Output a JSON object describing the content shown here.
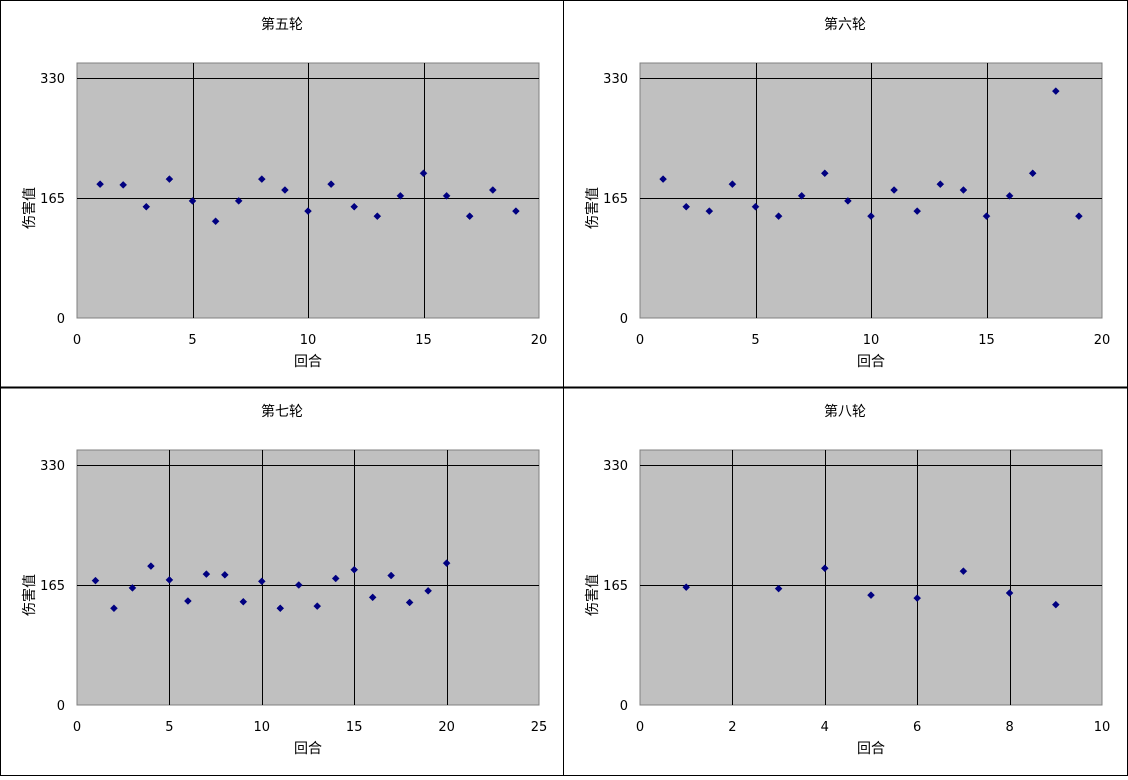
{
  "chart_data": [
    {
      "type": "scatter",
      "title": "第五轮",
      "xlabel": "回合",
      "ylabel": "伤害值",
      "xlim": [
        0,
        20
      ],
      "ylim": [
        0,
        330
      ],
      "xticks": [
        0,
        5,
        10,
        15,
        20
      ],
      "yticks": [
        0,
        165,
        330
      ],
      "grid": true,
      "marker_color": "#000080",
      "points": [
        {
          "x": 1,
          "y": 184
        },
        {
          "x": 2,
          "y": 183
        },
        {
          "x": 3,
          "y": 153
        },
        {
          "x": 4,
          "y": 191
        },
        {
          "x": 5,
          "y": 161
        },
        {
          "x": 6,
          "y": 133
        },
        {
          "x": 7,
          "y": 161
        },
        {
          "x": 8,
          "y": 191
        },
        {
          "x": 9,
          "y": 176
        },
        {
          "x": 10,
          "y": 147
        },
        {
          "x": 11,
          "y": 184
        },
        {
          "x": 12,
          "y": 153
        },
        {
          "x": 13,
          "y": 140
        },
        {
          "x": 14,
          "y": 168
        },
        {
          "x": 15,
          "y": 199
        },
        {
          "x": 16,
          "y": 168
        },
        {
          "x": 17,
          "y": 140
        },
        {
          "x": 18,
          "y": 176
        },
        {
          "x": 19,
          "y": 147
        }
      ]
    },
    {
      "type": "scatter",
      "title": "第六轮",
      "xlabel": "回合",
      "ylabel": "伤害值",
      "xlim": [
        0,
        20
      ],
      "ylim": [
        0,
        330
      ],
      "xticks": [
        0,
        5,
        10,
        15,
        20
      ],
      "yticks": [
        0,
        165,
        330
      ],
      "grid": true,
      "marker_color": "#000080",
      "points": [
        {
          "x": 1,
          "y": 191
        },
        {
          "x": 2,
          "y": 153
        },
        {
          "x": 3,
          "y": 147
        },
        {
          "x": 4,
          "y": 184
        },
        {
          "x": 5,
          "y": 153
        },
        {
          "x": 6,
          "y": 140
        },
        {
          "x": 7,
          "y": 168
        },
        {
          "x": 8,
          "y": 199
        },
        {
          "x": 9,
          "y": 161
        },
        {
          "x": 10,
          "y": 140
        },
        {
          "x": 11,
          "y": 176
        },
        {
          "x": 12,
          "y": 147
        },
        {
          "x": 13,
          "y": 184
        },
        {
          "x": 14,
          "y": 176
        },
        {
          "x": 15,
          "y": 140
        },
        {
          "x": 16,
          "y": 168
        },
        {
          "x": 17,
          "y": 199
        },
        {
          "x": 18,
          "y": 312
        },
        {
          "x": 19,
          "y": 140
        }
      ]
    },
    {
      "type": "scatter",
      "title": "第七轮",
      "xlabel": "回合",
      "ylabel": "伤害值",
      "xlim": [
        0,
        25
      ],
      "ylim": [
        0,
        330
      ],
      "xticks": [
        0,
        5,
        10,
        15,
        20,
        25
      ],
      "yticks": [
        0,
        165,
        330
      ],
      "grid": true,
      "marker_color": "#000080",
      "points": [
        {
          "x": 1,
          "y": 171
        },
        {
          "x": 2,
          "y": 133
        },
        {
          "x": 3,
          "y": 161
        },
        {
          "x": 4,
          "y": 191
        },
        {
          "x": 5,
          "y": 172
        },
        {
          "x": 6,
          "y": 143
        },
        {
          "x": 7,
          "y": 180
        },
        {
          "x": 8,
          "y": 179
        },
        {
          "x": 9,
          "y": 142
        },
        {
          "x": 10,
          "y": 170
        },
        {
          "x": 11,
          "y": 133
        },
        {
          "x": 12,
          "y": 165
        },
        {
          "x": 13,
          "y": 136
        },
        {
          "x": 14,
          "y": 174
        },
        {
          "x": 15,
          "y": 186
        },
        {
          "x": 16,
          "y": 148
        },
        {
          "x": 17,
          "y": 178
        },
        {
          "x": 18,
          "y": 141
        },
        {
          "x": 19,
          "y": 157
        },
        {
          "x": 20,
          "y": 195
        }
      ]
    },
    {
      "type": "scatter",
      "title": "第八轮",
      "xlabel": "回合",
      "ylabel": "伤害值",
      "xlim": [
        0,
        10
      ],
      "ylim": [
        0,
        330
      ],
      "xticks": [
        0,
        2,
        4,
        6,
        8,
        10
      ],
      "yticks": [
        0,
        165,
        330
      ],
      "grid": true,
      "marker_color": "#000080",
      "points": [
        {
          "x": 1,
          "y": 162
        },
        {
          "x": 3,
          "y": 160
        },
        {
          "x": 4,
          "y": 188
        },
        {
          "x": 5,
          "y": 151
        },
        {
          "x": 6,
          "y": 147
        },
        {
          "x": 7,
          "y": 184
        },
        {
          "x": 8,
          "y": 154
        },
        {
          "x": 9,
          "y": 138
        }
      ]
    }
  ]
}
